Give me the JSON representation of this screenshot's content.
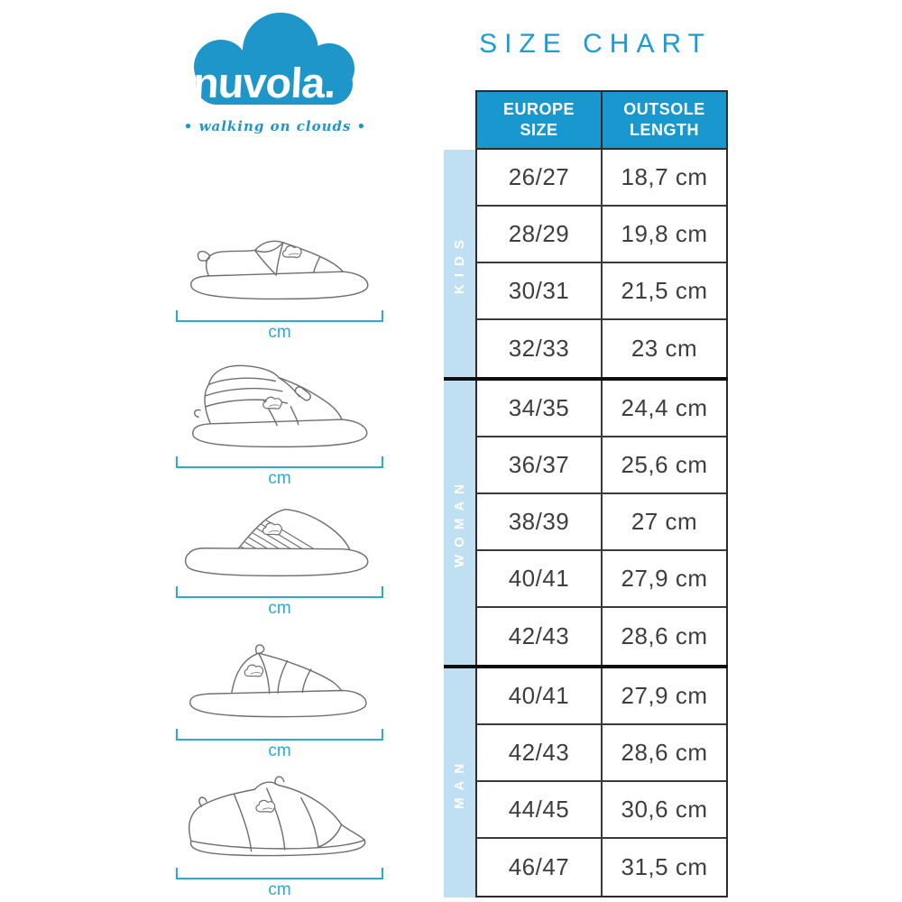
{
  "logo": {
    "brand": "nuvola.",
    "tagline": "• walking on clouds •"
  },
  "title": "SIZE CHART",
  "table": {
    "headers": [
      "EUROPE\nSIZE",
      "OUTSOLE\nLENGTH"
    ],
    "sections": [
      {
        "label": "KIDS",
        "rows": [
          [
            "26/27",
            "18,7 cm"
          ],
          [
            "28/29",
            "19,8 cm"
          ],
          [
            "30/31",
            "21,5 cm"
          ],
          [
            "32/33",
            "23 cm"
          ]
        ]
      },
      {
        "label": "WOMAN",
        "rows": [
          [
            "34/35",
            "24,4 cm"
          ],
          [
            "36/37",
            "25,6 cm"
          ],
          [
            "38/39",
            "27 cm"
          ],
          [
            "40/41",
            "27,9 cm"
          ],
          [
            "42/43",
            "28,6 cm"
          ]
        ]
      },
      {
        "label": "MAN",
        "rows": [
          [
            "40/41",
            "27,9 cm"
          ],
          [
            "42/43",
            "28,6 cm"
          ],
          [
            "44/45",
            "30,6 cm"
          ],
          [
            "46/47",
            "31,5 cm"
          ]
        ]
      }
    ]
  },
  "shoes": [
    {
      "name": "clog-slipper",
      "measure_label": "cm"
    },
    {
      "name": "bootie-slipper",
      "measure_label": "cm"
    },
    {
      "name": "striped-mule-slipper",
      "measure_label": "cm"
    },
    {
      "name": "open-toe-slide-slipper",
      "measure_label": "cm"
    },
    {
      "name": "quilted-home-slipper",
      "measure_label": "cm"
    }
  ],
  "colors": {
    "brand_blue": "#1f96ca",
    "title_cyan": "#1b9cd3",
    "header_bg": "#1898cf",
    "header_text": "#ffffff",
    "strip_bg": "#bfe0f2",
    "strip_text": "#ffffff",
    "accent_cyan": "#2aabd4",
    "cell_text": "#3e3e3e",
    "border_dark": "#2b2b2b",
    "divider_black": "#0f0f0f",
    "drawing_stroke": "#6f6f6f"
  }
}
